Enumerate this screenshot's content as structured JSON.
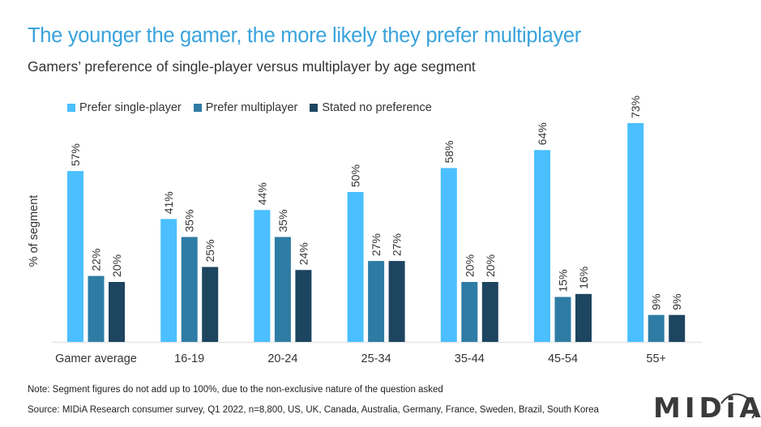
{
  "header": {
    "title": "The younger the gamer, the more likely they prefer multiplayer",
    "subtitle": "Gamers’ preference of single-player versus multiplayer by age segment"
  },
  "footer": {
    "note": "Note: Segment figures do not add up to 100%, due to the non-exclusive nature of the question asked",
    "source": "Source: MIDiA Research consumer survey, Q1 2022, n=8,800, US, UK, Canada, Australia, Germany, France, Sweden, Brazil, South Korea",
    "logo": "MIDiA"
  },
  "colors": {
    "title": "#3aa3dc",
    "single": "#4bbfff",
    "multi": "#2e7ca5",
    "none": "#1d4560",
    "axis": "#e6e6e6"
  },
  "chart_data": {
    "type": "bar",
    "title": "The younger the gamer, the more likely they prefer multiplayer",
    "subtitle": "Gamers’ preference of single-player versus multiplayer by age segment",
    "xlabel": "",
    "ylabel": "% of segment",
    "ylim": [
      0,
      75
    ],
    "grid": false,
    "legend_position": "top-left",
    "value_suffix": "%",
    "categories": [
      "Gamer average",
      "16-19",
      "20-24",
      "25-34",
      "35-44",
      "45-54",
      "55+"
    ],
    "series": [
      {
        "name": "Prefer single-player",
        "color": "#4bbfff",
        "values": [
          57,
          41,
          44,
          50,
          58,
          64,
          73
        ]
      },
      {
        "name": "Prefer multiplayer",
        "color": "#2e7ca5",
        "values": [
          22,
          35,
          35,
          27,
          20,
          15,
          9
        ]
      },
      {
        "name": "Stated no preference",
        "color": "#1d4560",
        "values": [
          20,
          25,
          24,
          27,
          20,
          16,
          9
        ]
      }
    ]
  }
}
